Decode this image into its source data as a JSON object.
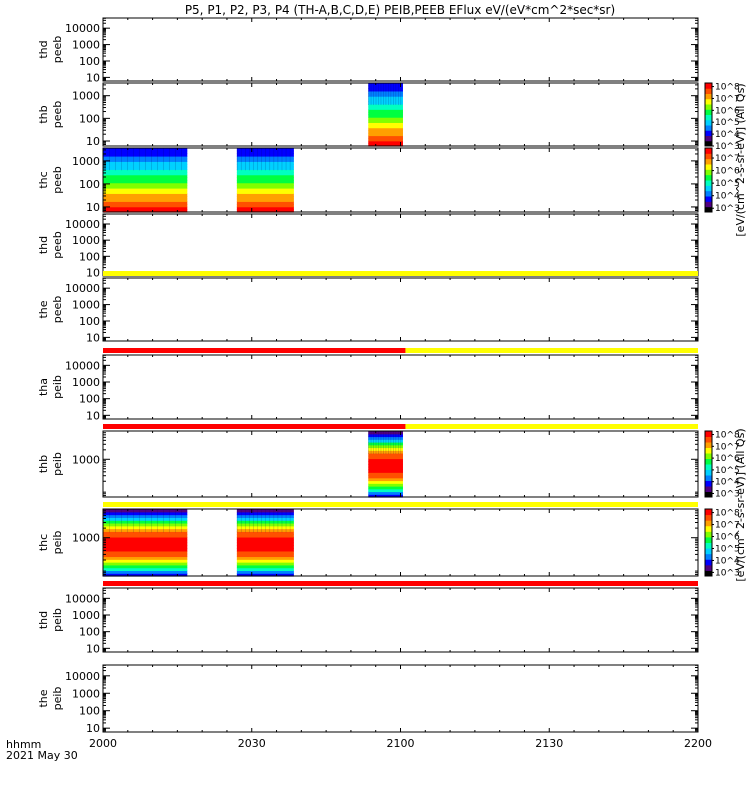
{
  "chart_data": {
    "type": "heatmap",
    "title": "P5, P1, P2, P3, P4 (TH-A,B,C,D,E) PEIB,PEEB EFlux eV/(eV*cm^2*sec*sr)",
    "x_axis": {
      "ticks": [
        "2000",
        "2030",
        "2100",
        "2130",
        "2200"
      ],
      "tick_minutes": [
        0,
        30,
        60,
        90,
        120
      ],
      "range_minutes": [
        0,
        120
      ],
      "label_line1": "hhmm",
      "label_line2": "2021 May 30"
    },
    "colorbars": [
      {
        "name": "thb",
        "label": "[eV/(cm^2-s-sr-eV)] (All Qs)",
        "ticks": [
          "10^3",
          "10^4",
          "10^5",
          "10^6",
          "10^7",
          "10^8"
        ],
        "log_range": [
          3,
          8.3
        ]
      },
      {
        "name": "thc",
        "label": "[eV/(cm^2-s-sr-eV)] (All Qs)",
        "ticks": [
          "10^3",
          "10^4",
          "10^5",
          "10^6",
          "10^7"
        ],
        "log_range": [
          2.7,
          7.8
        ]
      },
      {
        "name": "thb",
        "label": "[eV/(cm^2-s-sr-eV)] (All Qs)",
        "ticks": [
          "10^3",
          "10^4",
          "10^5",
          "10^6",
          "10^7",
          "10^8"
        ],
        "log_range": [
          2.7,
          8.3
        ]
      },
      {
        "name": "thc",
        "label": "[eV/(cm^2-s-sr-eV)] (All Qs)",
        "ticks": [
          "10^3",
          "10^4",
          "10^5",
          "10^6",
          "10^7",
          "10^8"
        ],
        "log_range": [
          2.7,
          8.3
        ]
      }
    ],
    "panels": [
      {
        "label1": "thd",
        "label2": "peeb",
        "y_ticks": [
          "10",
          "100",
          "1000",
          "10000"
        ],
        "y_log_range": [
          0.78,
          4.62
        ]
      },
      {
        "label1": "thb",
        "label2": "peeb",
        "y_ticks": [
          "10",
          "100",
          "1000"
        ],
        "y_log_range": [
          0.78,
          3.56
        ],
        "spectrogram": [
          {
            "start_minute": 53.5,
            "end_minute": 60.5,
            "profile": "peeb"
          }
        ]
      },
      {
        "label1": "thc",
        "label2": "peeb",
        "y_ticks": [
          "10",
          "100",
          "1000"
        ],
        "y_log_range": [
          0.78,
          3.56
        ],
        "spectrogram": [
          {
            "start_minute": 0,
            "end_minute": 17,
            "profile": "peeb"
          },
          {
            "start_minute": 27,
            "end_minute": 38.5,
            "profile": "peeb"
          }
        ]
      },
      {
        "label1": "thd",
        "label2": "peeb",
        "y_ticks": [
          "10",
          "100",
          "1000",
          "10000"
        ],
        "y_log_range": [
          0.78,
          4.62
        ]
      },
      {
        "label1": "the",
        "label2": "peeb",
        "y_ticks": [
          "10",
          "100",
          "1000",
          "10000"
        ],
        "y_log_range": [
          0.78,
          4.62
        ],
        "flag_bar": [
          {
            "start_minute": 0,
            "end_minute": 120,
            "color": "#ffff00"
          }
        ]
      },
      {
        "label1": "tha",
        "label2": "peib",
        "y_ticks": [
          "10",
          "100",
          "1000",
          "10000"
        ],
        "y_log_range": [
          0.78,
          4.62
        ],
        "flag_bar": [
          {
            "start_minute": 0,
            "end_minute": 61,
            "color": "#ff0000"
          },
          {
            "start_minute": 61,
            "end_minute": 120,
            "color": "#ffff00"
          }
        ]
      },
      {
        "label1": "thb",
        "label2": "peib",
        "y_ticks": [
          "1000"
        ],
        "y_log_range": [
          1.8,
          3.9
        ],
        "spectrogram": [
          {
            "start_minute": 53.5,
            "end_minute": 60.5,
            "profile": "peib"
          }
        ],
        "flag_bar": [
          {
            "start_minute": 0,
            "end_minute": 61,
            "color": "#ff0000"
          },
          {
            "start_minute": 61,
            "end_minute": 120,
            "color": "#ffff00"
          }
        ]
      },
      {
        "label1": "thc",
        "label2": "peib",
        "y_ticks": [
          "1000"
        ],
        "y_log_range": [
          1.8,
          3.9
        ],
        "spectrogram": [
          {
            "start_minute": 0,
            "end_minute": 17,
            "profile": "peib"
          },
          {
            "start_minute": 27,
            "end_minute": 38.5,
            "profile": "peib"
          }
        ],
        "flag_bar": [
          {
            "start_minute": 0,
            "end_minute": 120,
            "color": "#ffff00"
          }
        ]
      },
      {
        "label1": "thd",
        "label2": "peib",
        "y_ticks": [
          "10",
          "100",
          "1000",
          "10000"
        ],
        "y_log_range": [
          0.78,
          4.62
        ],
        "flag_bar": [
          {
            "start_minute": 0,
            "end_minute": 120,
            "color": "#ff0000"
          }
        ]
      },
      {
        "label1": "the",
        "label2": "peib",
        "y_ticks": [
          "10",
          "100",
          "1000",
          "10000"
        ],
        "y_log_range": [
          0.78,
          4.62
        ]
      }
    ],
    "colormap": [
      "#000000",
      "#500080",
      "#0000ff",
      "#0080ff",
      "#00d0ff",
      "#00ffc0",
      "#00ff40",
      "#80ff00",
      "#ffff00",
      "#ffa000",
      "#ff5000",
      "#ff0000"
    ]
  }
}
